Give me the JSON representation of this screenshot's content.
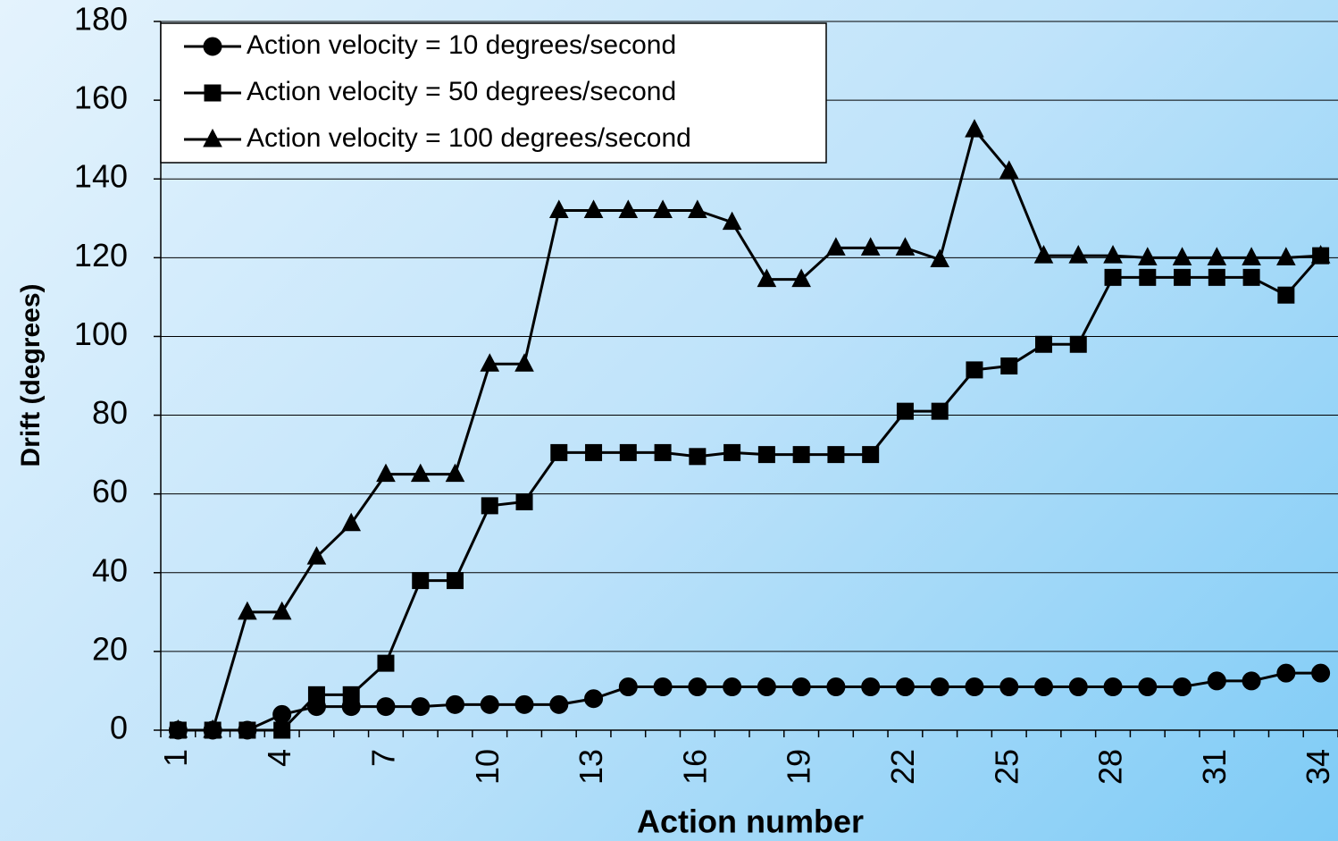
{
  "chart_data": {
    "type": "line",
    "xlabel": "Action number",
    "ylabel": "Drift (degrees)",
    "categories": [
      "1",
      null,
      null,
      "4",
      null,
      null,
      "7",
      null,
      null,
      "10",
      null,
      null,
      "13",
      null,
      null,
      "16",
      null,
      null,
      "19",
      null,
      null,
      "22",
      null,
      null,
      "25",
      null,
      null,
      "28",
      null,
      null,
      "31",
      null,
      null,
      "34"
    ],
    "series": [
      {
        "name": "Action velocity = 10 degrees/second",
        "color": "#000000",
        "marker": "circle",
        "values": [
          0,
          0,
          0,
          4,
          6,
          6,
          6,
          6,
          6.5,
          6.5,
          6.5,
          6.5,
          8,
          11,
          11,
          11,
          11,
          11,
          11,
          11,
          11,
          11,
          11,
          11,
          11,
          11,
          11,
          11,
          11,
          11,
          12.5,
          12.5,
          14.5,
          14.5
        ]
      },
      {
        "name": "Action velocity = 50 degrees/second",
        "color": "#000000",
        "marker": "square",
        "values": [
          0,
          0,
          0,
          0,
          9,
          9,
          17,
          38,
          38,
          57,
          58,
          70.5,
          70.5,
          70.5,
          70.5,
          69.5,
          70.5,
          70,
          70,
          70,
          70,
          81,
          81,
          91.5,
          92.5,
          98,
          98,
          115,
          115,
          115,
          115,
          115,
          110.5,
          120.5
        ]
      },
      {
        "name": "Action velocity = 100 degrees/second",
        "color": "#000000",
        "marker": "triangle",
        "values": [
          0,
          0,
          30,
          30,
          44,
          52.5,
          65,
          65,
          65,
          93,
          93,
          132,
          132,
          132,
          132,
          132,
          129,
          114.5,
          114.5,
          122.5,
          122.5,
          122.5,
          119.5,
          152.5,
          142,
          120.5,
          120.5,
          120.5,
          120,
          120,
          120,
          120,
          120,
          120.5
        ]
      }
    ],
    "ylim": [
      0,
      180
    ],
    "yticks": [
      0,
      20,
      40,
      60,
      80,
      100,
      120,
      140,
      160,
      180
    ],
    "grid": true,
    "legend": "upper left"
  }
}
